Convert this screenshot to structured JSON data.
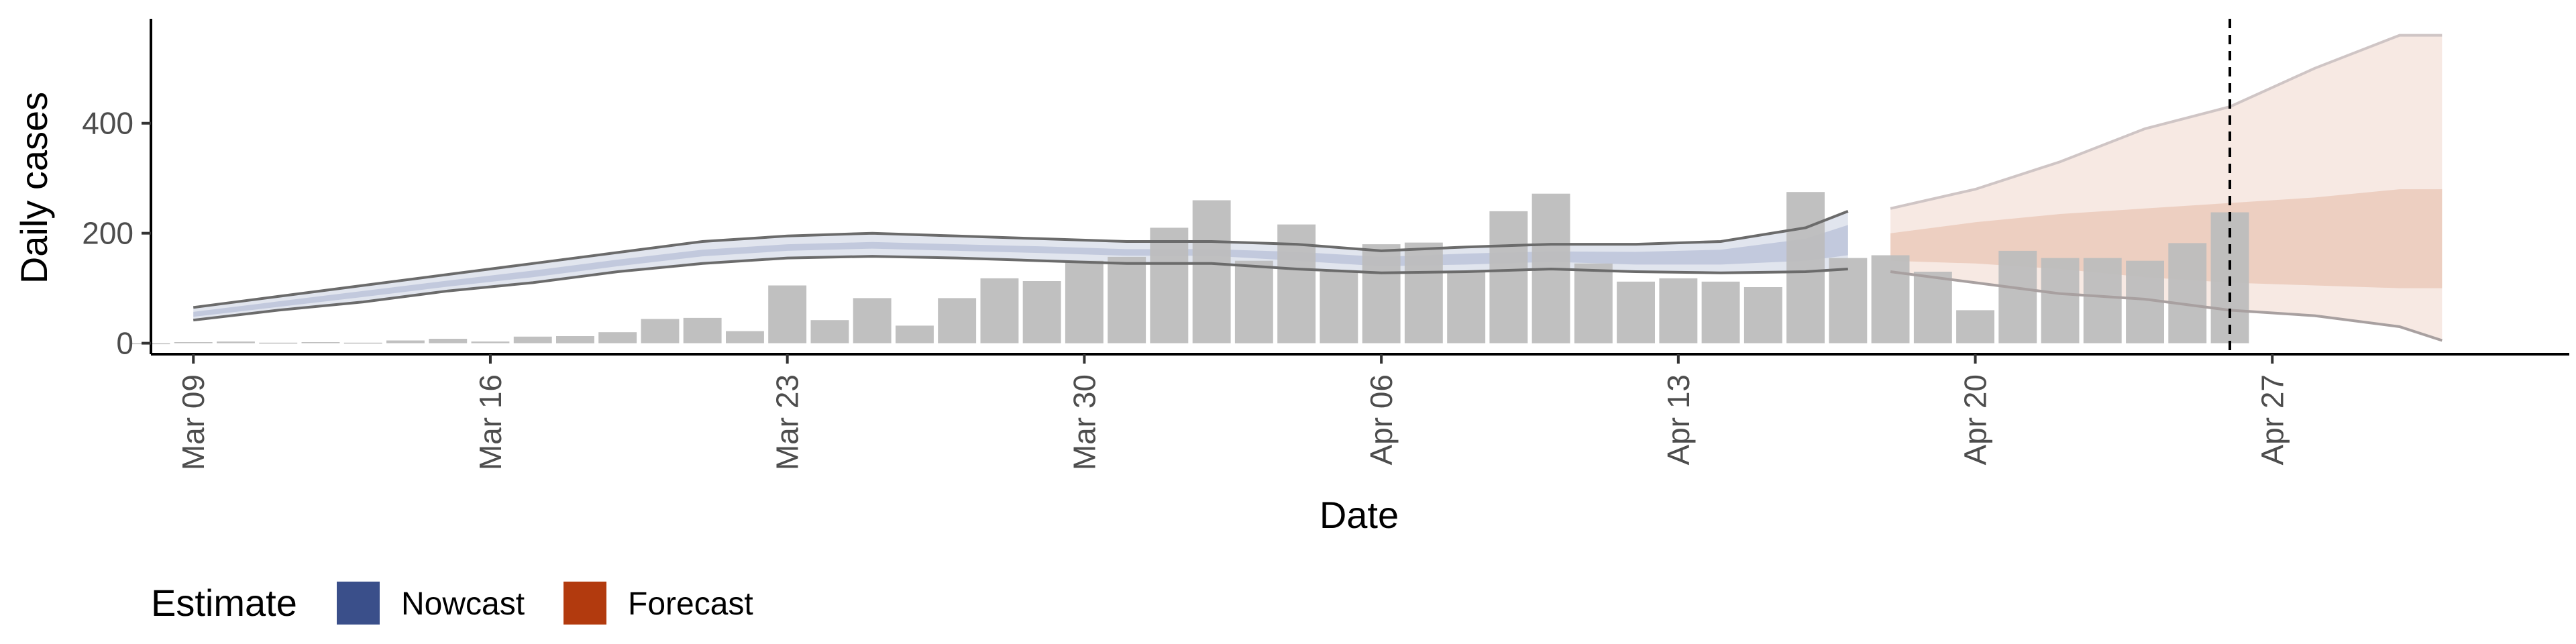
{
  "chart_data": {
    "type": "bar",
    "xlabel": "Date",
    "ylabel": "Daily cases",
    "ylim": [
      -20,
      590
    ],
    "yticks": [
      0,
      200,
      400
    ],
    "xticks": [
      {
        "date": "2020-03-09",
        "label": "Mar 09"
      },
      {
        "date": "2020-03-16",
        "label": "Mar 16"
      },
      {
        "date": "2020-03-23",
        "label": "Mar 23"
      },
      {
        "date": "2020-03-30",
        "label": "Mar 30"
      },
      {
        "date": "2020-04-06",
        "label": "Apr 06"
      },
      {
        "date": "2020-04-13",
        "label": "Apr 13"
      },
      {
        "date": "2020-04-20",
        "label": "Apr 20"
      },
      {
        "date": "2020-04-27",
        "label": "Apr 27"
      }
    ],
    "xlim": [
      "2020-03-08",
      "2020-05-04"
    ],
    "grid": false,
    "reported_cases": {
      "dates": [
        "2020-03-08",
        "2020-03-09",
        "2020-03-10",
        "2020-03-11",
        "2020-03-12",
        "2020-03-13",
        "2020-03-14",
        "2020-03-15",
        "2020-03-16",
        "2020-03-17",
        "2020-03-18",
        "2020-03-19",
        "2020-03-20",
        "2020-03-21",
        "2020-03-22",
        "2020-03-23",
        "2020-03-24",
        "2020-03-25",
        "2020-03-26",
        "2020-03-27",
        "2020-03-28",
        "2020-03-29",
        "2020-03-30",
        "2020-03-31",
        "2020-04-01",
        "2020-04-02",
        "2020-04-03",
        "2020-04-04",
        "2020-04-05",
        "2020-04-06",
        "2020-04-07",
        "2020-04-08",
        "2020-04-09",
        "2020-04-10",
        "2020-04-11",
        "2020-04-12",
        "2020-04-13",
        "2020-04-14",
        "2020-04-15",
        "2020-04-16",
        "2020-04-17",
        "2020-04-18",
        "2020-04-19",
        "2020-04-20",
        "2020-04-21",
        "2020-04-22",
        "2020-04-23",
        "2020-04-24",
        "2020-04-25",
        "2020-04-26"
      ],
      "values": [
        0,
        2,
        3,
        1,
        2,
        1,
        5,
        8,
        3,
        12,
        13,
        20,
        44,
        46,
        22,
        105,
        42,
        82,
        32,
        82,
        118,
        113,
        150,
        157,
        210,
        260,
        150,
        216,
        130,
        180,
        183,
        130,
        240,
        272,
        145,
        112,
        118,
        112,
        102,
        275,
        155,
        160,
        130,
        60,
        168,
        155,
        155,
        150,
        182,
        238
      ],
      "color": "#bdbdbd"
    },
    "nowcast": {
      "name": "Nowcast",
      "color": "#3a4f8a",
      "dates": [
        "2020-03-09",
        "2020-03-11",
        "2020-03-13",
        "2020-03-15",
        "2020-03-17",
        "2020-03-19",
        "2020-03-21",
        "2020-03-23",
        "2020-03-25",
        "2020-03-27",
        "2020-03-29",
        "2020-03-31",
        "2020-04-02",
        "2020-04-04",
        "2020-04-06",
        "2020-04-08",
        "2020-04-10",
        "2020-04-12",
        "2020-04-14",
        "2020-04-16",
        "2020-04-17"
      ],
      "upper90": [
        65,
        85,
        105,
        125,
        145,
        165,
        185,
        195,
        200,
        195,
        190,
        185,
        185,
        180,
        168,
        175,
        180,
        180,
        185,
        210,
        240
      ],
      "lower90": [
        42,
        60,
        75,
        95,
        110,
        130,
        145,
        155,
        158,
        155,
        150,
        145,
        145,
        135,
        128,
        130,
        135,
        130,
        128,
        130,
        135
      ],
      "upper50": [
        57,
        76,
        95,
        114,
        132,
        152,
        170,
        180,
        184,
        180,
        176,
        171,
        171,
        166,
        157,
        163,
        167,
        166,
        170,
        190,
        215
      ],
      "lower50": [
        48,
        66,
        84,
        103,
        120,
        140,
        158,
        168,
        172,
        168,
        164,
        159,
        159,
        150,
        140,
        143,
        148,
        143,
        143,
        150,
        160
      ]
    },
    "forecast": {
      "name": "Forecast",
      "color": "#b23a0e",
      "dates": [
        "2020-04-18",
        "2020-04-20",
        "2020-04-22",
        "2020-04-24",
        "2020-04-26",
        "2020-04-28",
        "2020-04-30",
        "2020-05-01"
      ],
      "upper90": [
        245,
        280,
        330,
        390,
        430,
        500,
        560,
        560
      ],
      "lower90": [
        130,
        110,
        90,
        80,
        60,
        50,
        30,
        5
      ],
      "upper50": [
        200,
        220,
        235,
        245,
        255,
        265,
        280,
        280
      ],
      "lower50": [
        150,
        145,
        135,
        120,
        110,
        105,
        100,
        100
      ]
    },
    "vline_date": "2020-04-26",
    "legend": {
      "title": "Estimate",
      "position": "bottom-left",
      "items": [
        {
          "label": "Nowcast",
          "color": "#3a4f8a"
        },
        {
          "label": "Forecast",
          "color": "#b23a0e"
        }
      ]
    }
  }
}
